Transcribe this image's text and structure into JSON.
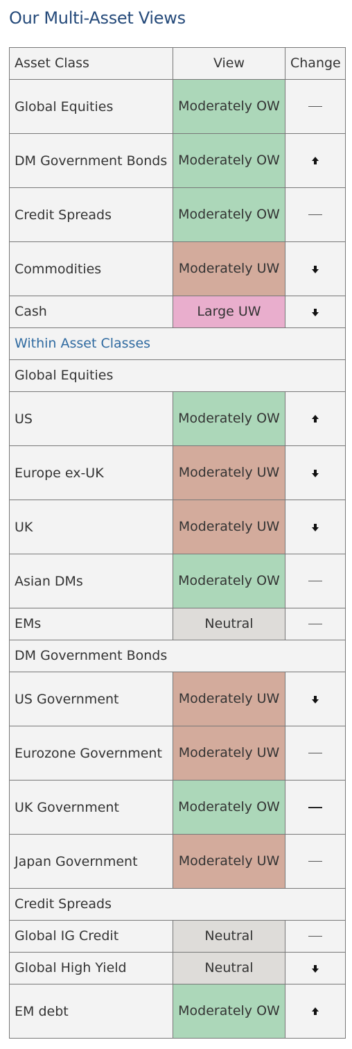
{
  "page_title": "Our Multi-Asset Views",
  "header": {
    "asset_class": "Asset Class",
    "view": "View",
    "change": "Change"
  },
  "rows": [
    {
      "asset": "Global Equities",
      "view": "Moderately OW",
      "change": "—"
    },
    {
      "asset": "DM Government Bonds",
      "view": "Moderately OW",
      "change": "up-arrow-icon"
    },
    {
      "asset": "Credit Spreads",
      "view": "Moderately OW",
      "change": "—"
    },
    {
      "asset": "Commodities",
      "view": "Moderately UW",
      "change": "down-arrow-icon"
    },
    {
      "asset": "Cash",
      "view": "Large UW",
      "change": "down-arrow-icon"
    },
    {
      "section": "Within Asset Classes"
    },
    {
      "subsection": "Global Equities"
    },
    {
      "asset": "US",
      "view": "Moderately OW",
      "change": "up-arrow-icon"
    },
    {
      "asset": "Europe ex-UK",
      "view": "Moderately UW",
      "change": "down-arrow-icon"
    },
    {
      "asset": "UK",
      "view": "Moderately UW",
      "change": "down-arrow-icon"
    },
    {
      "asset": "Asian DMs",
      "view": "Moderately OW",
      "change": "—"
    },
    {
      "asset": "EMs",
      "view": "Neutral",
      "change": "—"
    },
    {
      "subsection": "DM Government Bonds"
    },
    {
      "asset": "US Government",
      "view": "Moderately UW",
      "change": "down-arrow-icon"
    },
    {
      "asset": "Eurozone Government",
      "view": "Moderately UW",
      "change": "—"
    },
    {
      "asset": "UK Government",
      "view": "Moderately OW",
      "change": "—"
    },
    {
      "asset": "Japan Government",
      "view": "Moderately UW",
      "change": "—"
    },
    {
      "subsection": "Credit Spreads"
    },
    {
      "asset": "Global IG Credit",
      "view": "Neutral",
      "change": "—"
    },
    {
      "asset": "Global High Yield",
      "view": "Neutral",
      "change": "down-arrow-icon"
    },
    {
      "asset": "EM debt",
      "view": "Moderately OW",
      "change": "up-arrow-icon"
    }
  ],
  "colors": {
    "title": "#254a7a",
    "section": "#2f6aa0",
    "moderately_ow": "#acd7b9",
    "moderately_uw": "#d3ab9c",
    "large_uw": "#e9aecd",
    "neutral": "#dedcd9",
    "cell_bg": "#f3f3f3",
    "border": "#777777"
  }
}
